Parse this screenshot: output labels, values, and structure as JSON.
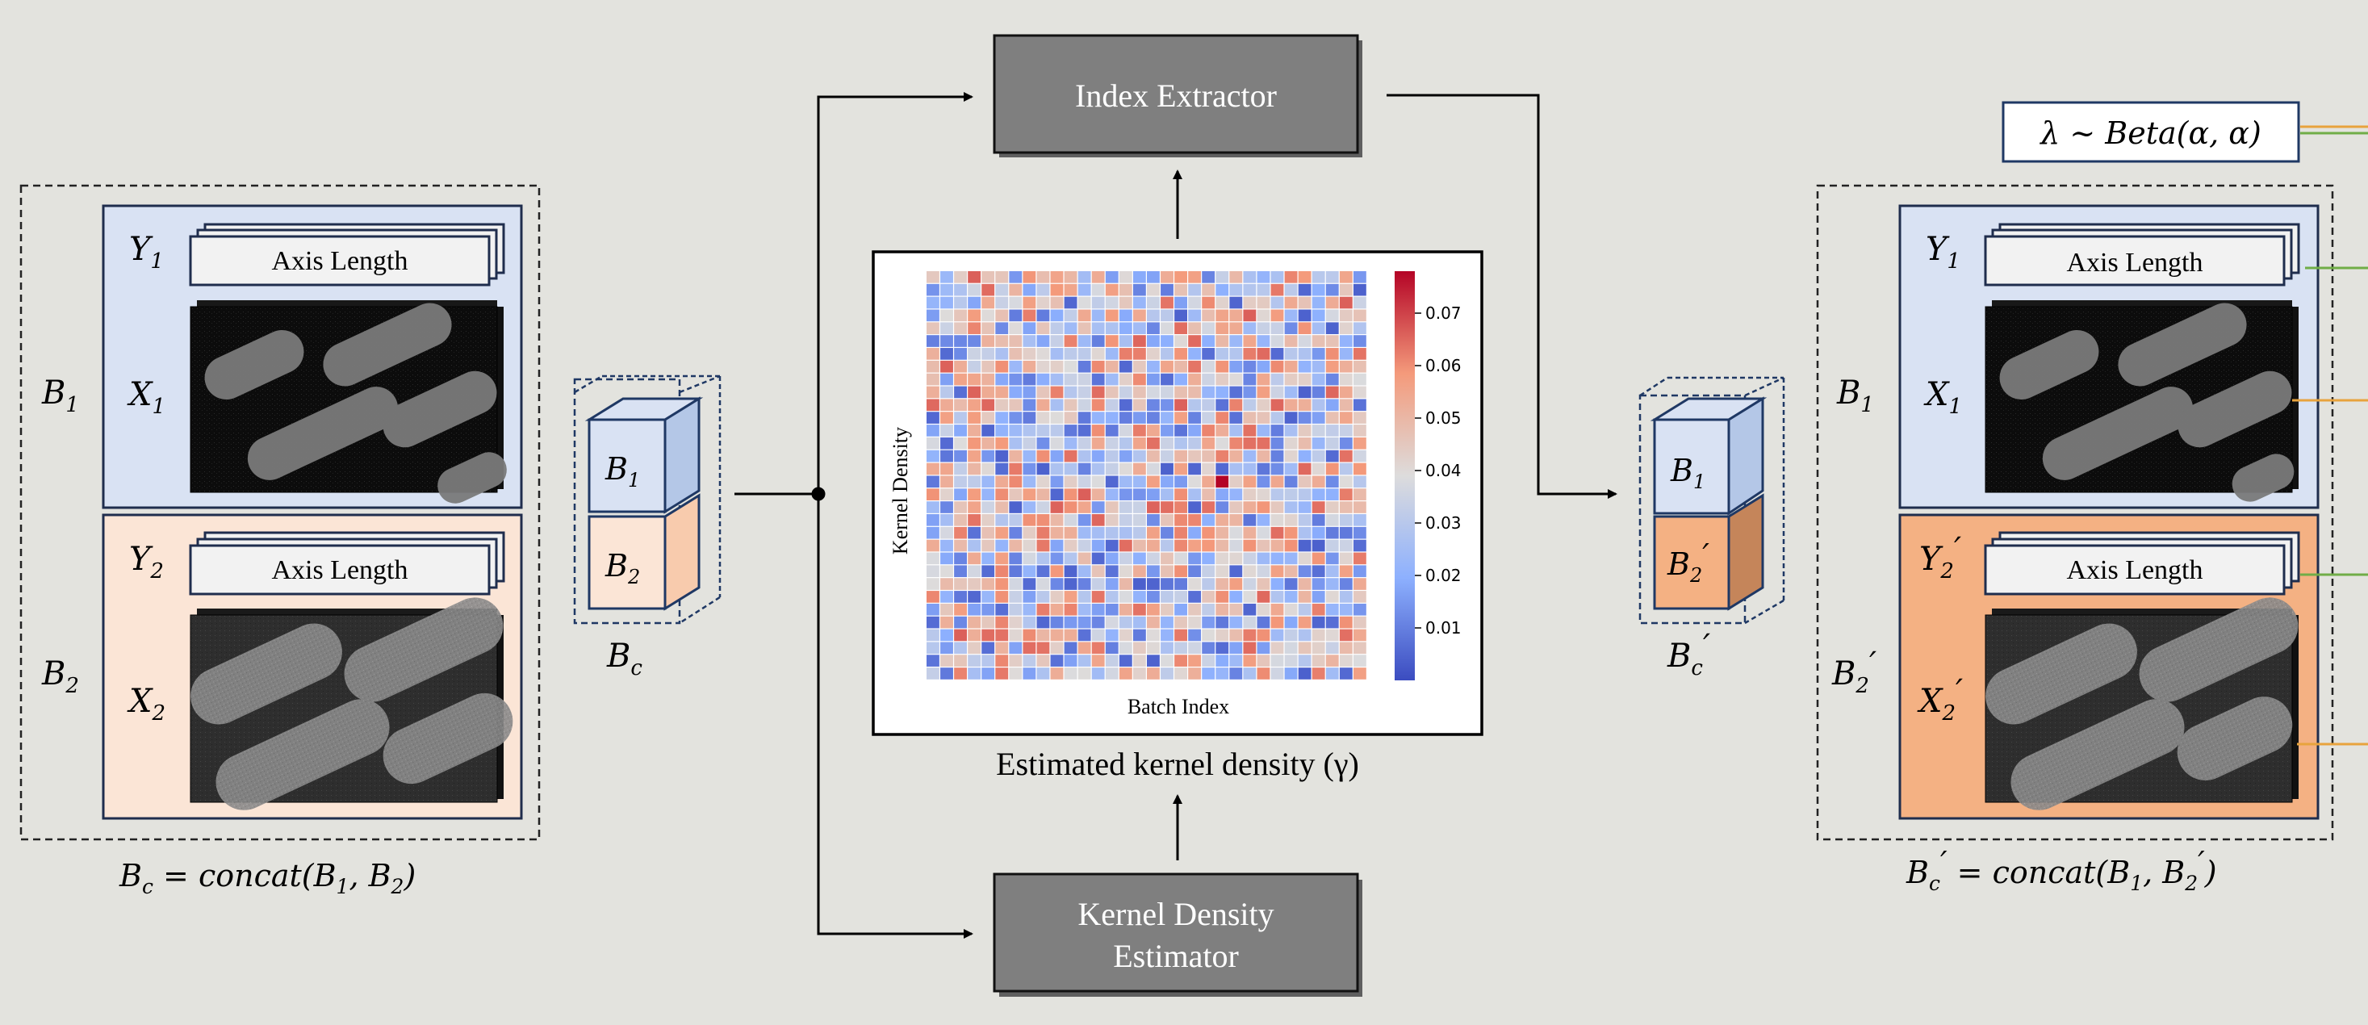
{
  "colors": {
    "background": "#e3e3de",
    "batch1_fill": "#d9e2f3",
    "batch2_fill": "#fbe5d6",
    "batch2_mixed_fill": "#f4b183",
    "dark_box": "#7f7f7f",
    "frame": "#1f3864",
    "heatmap_low": "#3b4cc0",
    "heatmap_mid": "#dddcdc",
    "heatmap_high": "#b40426",
    "green_line": "#70ad47",
    "orange_line": "#e8a33d"
  },
  "left_panel": {
    "b1_label": "B",
    "b1_sub": "1",
    "y1_label": "Y",
    "y1_sub": "1",
    "x1_label": "X",
    "x1_sub": "1",
    "axis_length_1": "Axis Length",
    "b2_label": "B",
    "b2_sub": "2",
    "y2_label": "Y",
    "y2_sub": "2",
    "x2_label": "X",
    "x2_sub": "2",
    "axis_length_2": "Axis Length",
    "caption": {
      "lhs": "B",
      "lhs_sub": "c",
      "eq": " = concat(B",
      "a_sub": "1",
      "mid": ", B",
      "b_sub": "2",
      "end": ")"
    }
  },
  "stack_left": {
    "top_label": "B",
    "top_sub": "1",
    "bottom_label": "B",
    "bottom_sub": "2",
    "caption": "B",
    "caption_sub": "c"
  },
  "index_extractor": {
    "label": "Index Extractor"
  },
  "kde": {
    "line1": "Kernel Density",
    "line2": "Estimator"
  },
  "heatmap_caption": "Estimated kernel density (γ)",
  "chart_data": {
    "type": "heatmap",
    "xlabel": "Batch Index",
    "ylabel": "Kernel Density",
    "rows": 32,
    "cols": 32,
    "value_range": [
      0.0,
      0.078
    ],
    "colorbar_ticks": [
      "0.07",
      "0.06",
      "0.05",
      "0.04",
      "0.03",
      "0.02",
      "0.01"
    ],
    "colorbar_tick_values": [
      0.07,
      0.06,
      0.05,
      0.04,
      0.03,
      0.02,
      0.01
    ]
  },
  "lambda": {
    "text": "λ ~ Beta(α, α)"
  },
  "stack_right": {
    "top_label": "B",
    "top_sub": "1",
    "bottom_label": "B",
    "bottom_sub": "2",
    "bottom_prime": "′",
    "caption": "B",
    "caption_sub": "c",
    "caption_prime": "′"
  },
  "right_panel": {
    "b1_label": "B",
    "b1_sub": "1",
    "y1_label": "Y",
    "y1_sub": "1",
    "x1_label": "X",
    "x1_sub": "1",
    "axis_length_1": "Axis Length",
    "b2_label": "B",
    "b2_sub": "2",
    "b2_prime": "′",
    "y2_label": "Y",
    "y2_sub": "2",
    "y2_prime": "′",
    "x2_label": "X",
    "x2_sub": "2",
    "x2_prime": "′",
    "axis_length_2": "Axis Length",
    "caption": {
      "lhs": "B",
      "lhs_sub": "c",
      "lhs_prime": "′",
      "eq": " = concat(B",
      "a_sub": "1",
      "mid": ", B",
      "b_sub": "2",
      "b_prime": "′",
      "end": ")"
    }
  }
}
